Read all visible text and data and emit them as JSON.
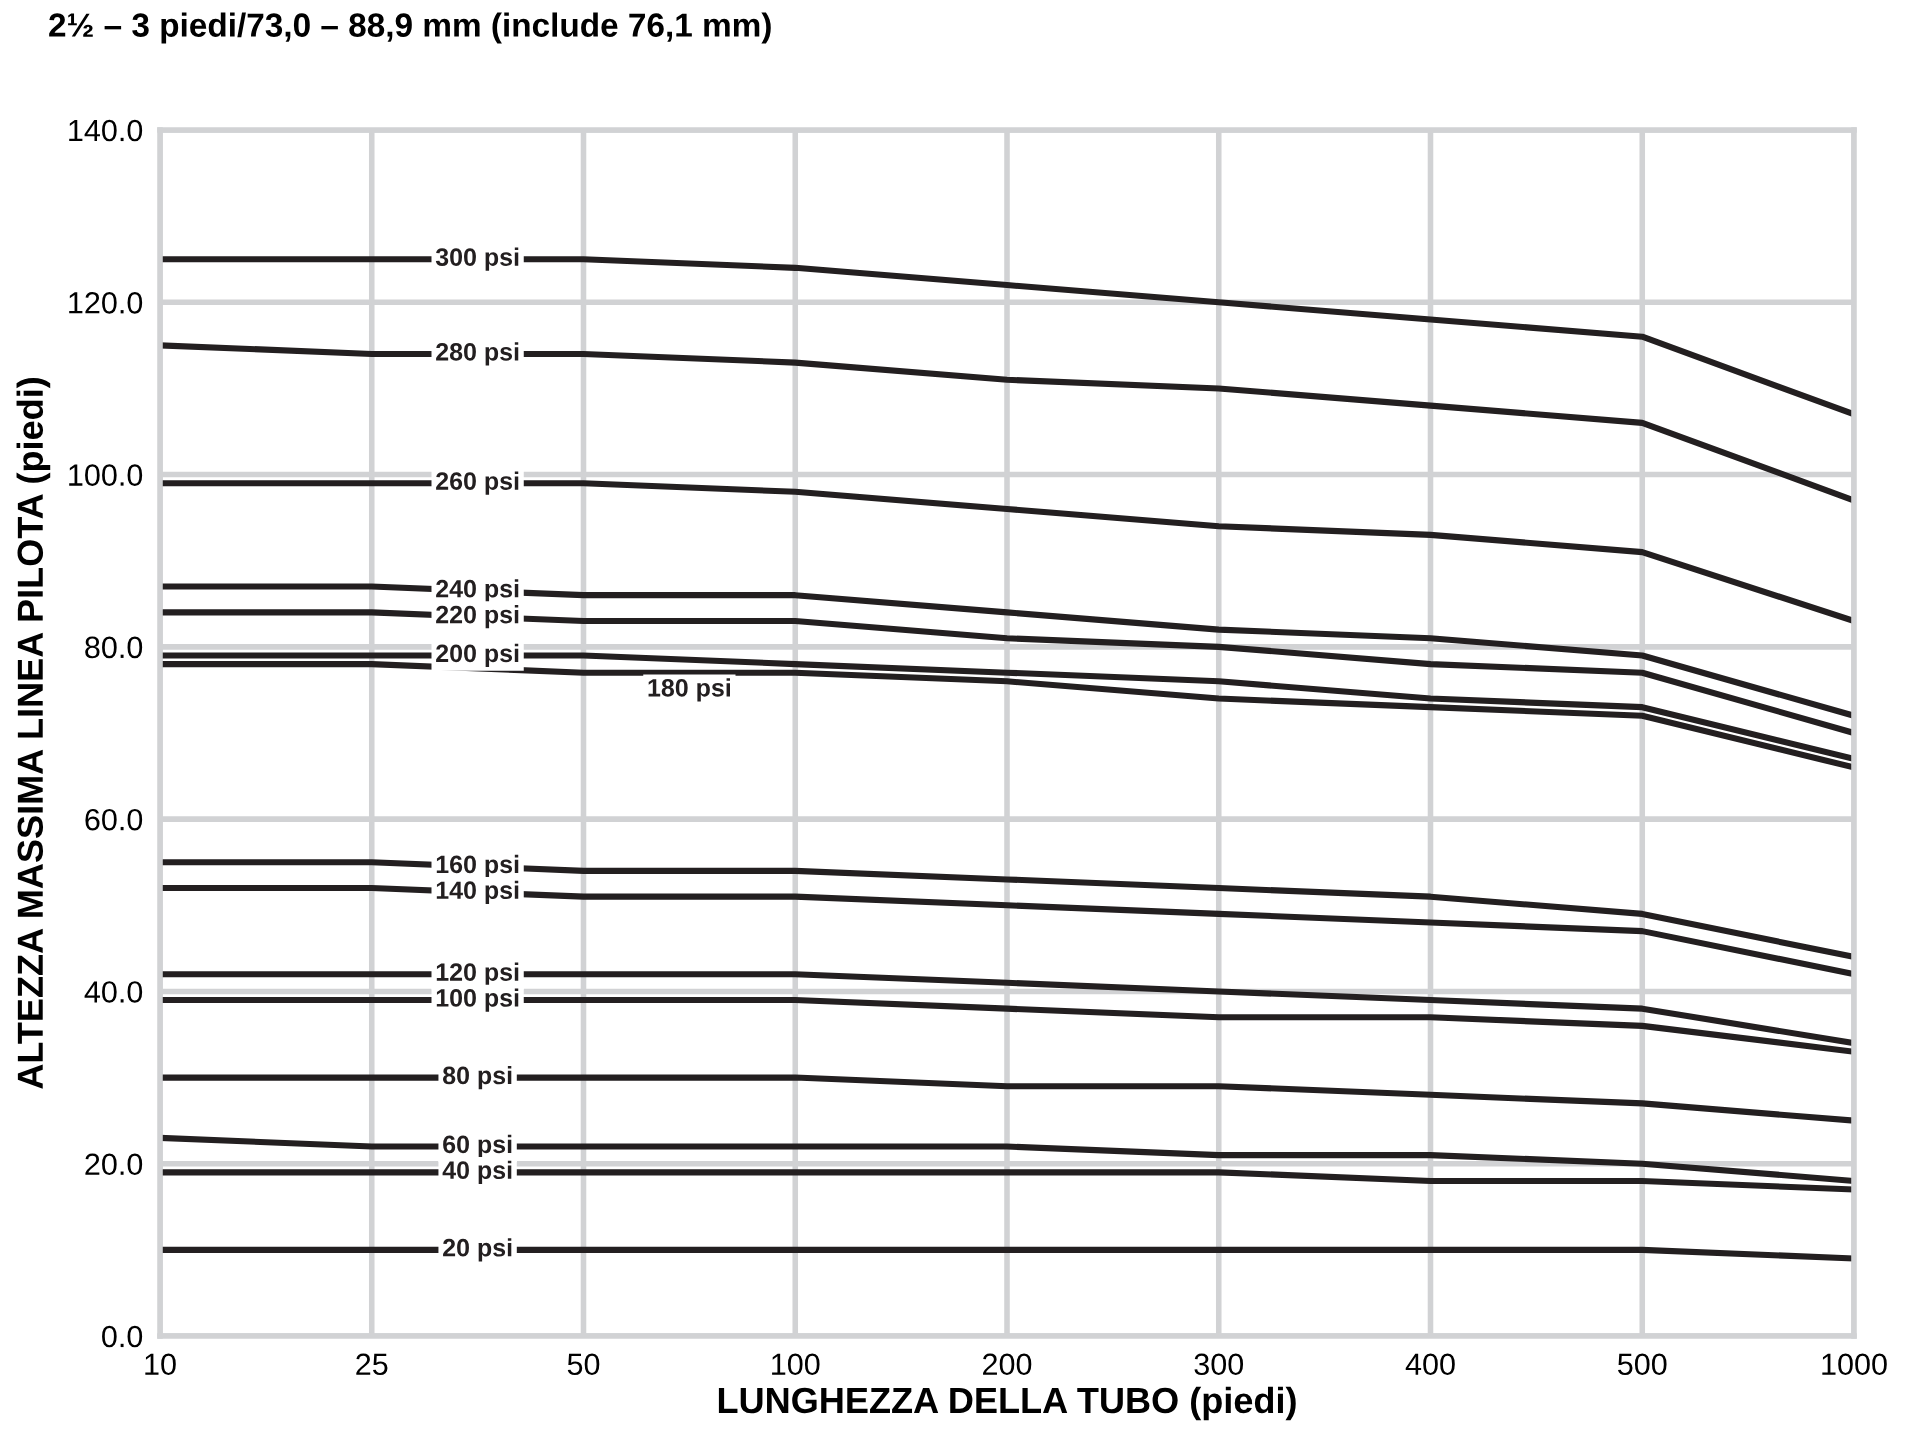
{
  "chart_data": {
    "type": "line",
    "title": "2½ – 3 piedi/73,0 – 88,9 mm (include 76,1 mm)",
    "xlabel": "LUNGHEZZA DELLA TUBO (piedi)",
    "ylabel": "ALTEZZA MASSIMA LINEA PILOTA (piedi)",
    "categories": [
      "10",
      "25",
      "50",
      "100",
      "200",
      "300",
      "400",
      "500",
      "1000"
    ],
    "ylim": [
      0,
      140
    ],
    "yticks": [
      {
        "value": 0,
        "label": "0.0"
      },
      {
        "value": 20,
        "label": "20.0"
      },
      {
        "value": 40,
        "label": "40.0"
      },
      {
        "value": 60,
        "label": "60.0"
      },
      {
        "value": 80,
        "label": "80.0"
      },
      {
        "value": 100,
        "label": "100.0"
      },
      {
        "value": 120,
        "label": "120.0"
      },
      {
        "value": 140,
        "label": "140.0"
      }
    ],
    "grid": true,
    "marker": "none",
    "line_style": "solid",
    "series": [
      {
        "name": "300 psi",
        "color": "#231f20",
        "values": [
          125,
          125,
          125,
          124,
          122,
          120,
          118,
          116,
          107
        ]
      },
      {
        "name": "280 psi",
        "color": "#231f20",
        "values": [
          115,
          114,
          114,
          113,
          111,
          110,
          108,
          106,
          97
        ]
      },
      {
        "name": "260 psi",
        "color": "#231f20",
        "values": [
          99,
          99,
          99,
          98,
          96,
          94,
          93,
          91,
          83
        ]
      },
      {
        "name": "240 psi",
        "color": "#231f20",
        "values": [
          87,
          87,
          86,
          86,
          84,
          82,
          81,
          79,
          72
        ]
      },
      {
        "name": "220 psi",
        "color": "#231f20",
        "values": [
          84,
          84,
          83,
          83,
          81,
          80,
          78,
          77,
          70
        ]
      },
      {
        "name": "200 psi",
        "color": "#231f20",
        "values": [
          79,
          79,
          79,
          78,
          77,
          76,
          74,
          73,
          67
        ]
      },
      {
        "name": "180 psi",
        "color": "#231f20",
        "values": [
          78,
          78,
          77,
          77,
          76,
          74,
          73,
          72,
          66
        ]
      },
      {
        "name": "160 psi",
        "color": "#231f20",
        "values": [
          55,
          55,
          54,
          54,
          53,
          52,
          51,
          49,
          44
        ]
      },
      {
        "name": "140 psi",
        "color": "#231f20",
        "values": [
          52,
          52,
          51,
          51,
          50,
          49,
          48,
          47,
          42
        ]
      },
      {
        "name": "120 psi",
        "color": "#231f20",
        "values": [
          42,
          42,
          42,
          42,
          41,
          40,
          39,
          38,
          34
        ]
      },
      {
        "name": "100 psi",
        "color": "#231f20",
        "values": [
          39,
          39,
          39,
          39,
          38,
          37,
          37,
          36,
          33
        ]
      },
      {
        "name": "80 psi",
        "color": "#231f20",
        "values": [
          30,
          30,
          30,
          30,
          29,
          29,
          28,
          27,
          25
        ]
      },
      {
        "name": "60 psi",
        "color": "#231f20",
        "values": [
          23,
          22,
          22,
          22,
          22,
          21,
          21,
          20,
          18
        ]
      },
      {
        "name": "40 psi",
        "color": "#231f20",
        "values": [
          19,
          19,
          19,
          19,
          19,
          19,
          18,
          18,
          17
        ]
      },
      {
        "name": "20 psi",
        "color": "#231f20",
        "values": [
          10,
          10,
          10,
          10,
          10,
          10,
          10,
          10,
          9
        ]
      }
    ]
  }
}
